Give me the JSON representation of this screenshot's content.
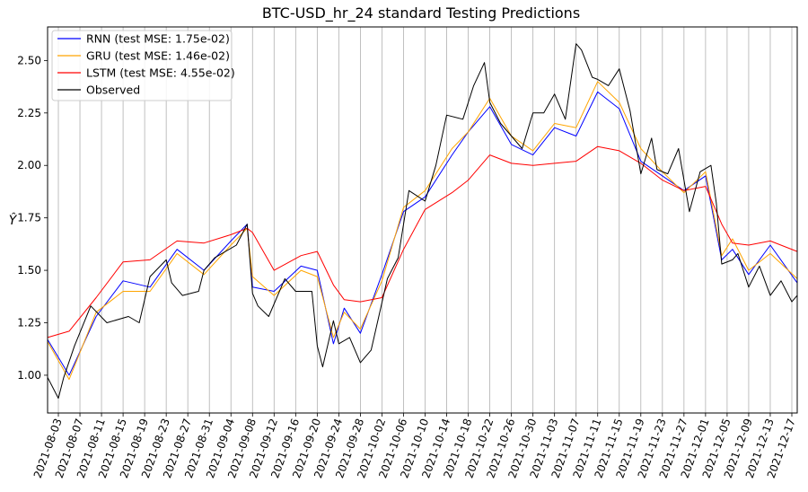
{
  "chart_data": {
    "type": "line",
    "title": "BTC-USD_hr_24 standard Testing Predictions",
    "xlabel": "",
    "ylabel": "Ŷ",
    "x_start": "2021-08-01",
    "x_end": "2021-12-18",
    "ylim": [
      0.82,
      2.66
    ],
    "y_ticks": [
      1.0,
      1.25,
      1.5,
      1.75,
      2.0,
      2.25,
      2.5
    ],
    "y_tick_labels": [
      "1.00",
      "1.25",
      "1.50",
      "1.75",
      "2.00",
      "2.25",
      "2.50"
    ],
    "x_ticks": [
      "2021-08-03",
      "2021-08-07",
      "2021-08-11",
      "2021-08-15",
      "2021-08-19",
      "2021-08-23",
      "2021-08-27",
      "2021-08-31",
      "2021-09-04",
      "2021-09-08",
      "2021-09-12",
      "2021-09-16",
      "2021-09-20",
      "2021-09-24",
      "2021-09-28",
      "2021-10-02",
      "2021-10-06",
      "2021-10-10",
      "2021-10-14",
      "2021-10-18",
      "2021-10-22",
      "2021-10-26",
      "2021-10-30",
      "2021-11-03",
      "2021-11-07",
      "2021-11-11",
      "2021-11-15",
      "2021-11-19",
      "2021-11-23",
      "2021-11-27",
      "2021-12-01",
      "2021-12-05",
      "2021-12-09",
      "2021-12-13",
      "2021-12-17"
    ],
    "grid": "vertical",
    "legend_position": "top-left",
    "series": [
      {
        "name": "RNN (test MSE: 1.75e-02)",
        "color": "#0000ff",
        "x": [
          "2021-08-01",
          "2021-08-05",
          "2021-08-10",
          "2021-08-15",
          "2021-08-20",
          "2021-08-25",
          "2021-08-30",
          "2021-09-04",
          "2021-09-07",
          "2021-09-08",
          "2021-09-12",
          "2021-09-17",
          "2021-09-20",
          "2021-09-23",
          "2021-09-25",
          "2021-09-28",
          "2021-10-02",
          "2021-10-06",
          "2021-10-10",
          "2021-10-15",
          "2021-10-18",
          "2021-10-22",
          "2021-10-26",
          "2021-10-30",
          "2021-11-03",
          "2021-11-07",
          "2021-11-11",
          "2021-11-15",
          "2021-11-19",
          "2021-11-23",
          "2021-11-27",
          "2021-12-01",
          "2021-12-04",
          "2021-12-06",
          "2021-12-09",
          "2021-12-13",
          "2021-12-18"
        ],
        "y": [
          1.17,
          1.0,
          1.28,
          1.45,
          1.42,
          1.6,
          1.5,
          1.64,
          1.72,
          1.42,
          1.4,
          1.52,
          1.5,
          1.15,
          1.32,
          1.2,
          1.48,
          1.78,
          1.85,
          2.05,
          2.16,
          2.28,
          2.1,
          2.05,
          2.18,
          2.14,
          2.35,
          2.27,
          2.02,
          1.95,
          1.88,
          1.95,
          1.55,
          1.6,
          1.48,
          1.62,
          1.44
        ]
      },
      {
        "name": "GRU (test MSE: 1.46e-02)",
        "color": "#ffa500",
        "x": [
          "2021-08-01",
          "2021-08-05",
          "2021-08-10",
          "2021-08-15",
          "2021-08-20",
          "2021-08-25",
          "2021-08-30",
          "2021-09-04",
          "2021-09-07",
          "2021-09-08",
          "2021-09-12",
          "2021-09-17",
          "2021-09-20",
          "2021-09-23",
          "2021-09-25",
          "2021-09-28",
          "2021-10-02",
          "2021-10-06",
          "2021-10-10",
          "2021-10-15",
          "2021-10-18",
          "2021-10-22",
          "2021-10-26",
          "2021-10-30",
          "2021-11-03",
          "2021-11-07",
          "2021-11-11",
          "2021-11-15",
          "2021-11-19",
          "2021-11-23",
          "2021-11-27",
          "2021-12-01",
          "2021-12-04",
          "2021-12-06",
          "2021-12-09",
          "2021-12-13",
          "2021-12-18"
        ],
        "y": [
          1.16,
          0.98,
          1.3,
          1.4,
          1.4,
          1.58,
          1.48,
          1.62,
          1.7,
          1.47,
          1.38,
          1.5,
          1.47,
          1.18,
          1.3,
          1.22,
          1.45,
          1.8,
          1.88,
          2.08,
          2.16,
          2.32,
          2.14,
          2.07,
          2.2,
          2.18,
          2.4,
          2.3,
          2.08,
          1.97,
          1.87,
          1.97,
          1.57,
          1.65,
          1.5,
          1.58,
          1.46
        ]
      },
      {
        "name": "LSTM (test MSE: 4.55e-02)",
        "color": "#ff0000",
        "x": [
          "2021-08-01",
          "2021-08-05",
          "2021-08-10",
          "2021-08-15",
          "2021-08-20",
          "2021-08-25",
          "2021-08-30",
          "2021-09-04",
          "2021-09-07",
          "2021-09-08",
          "2021-09-12",
          "2021-09-17",
          "2021-09-20",
          "2021-09-23",
          "2021-09-25",
          "2021-09-28",
          "2021-10-02",
          "2021-10-06",
          "2021-10-10",
          "2021-10-15",
          "2021-10-18",
          "2021-10-22",
          "2021-10-26",
          "2021-10-30",
          "2021-11-03",
          "2021-11-07",
          "2021-11-11",
          "2021-11-15",
          "2021-11-19",
          "2021-11-23",
          "2021-11-27",
          "2021-12-01",
          "2021-12-04",
          "2021-12-06",
          "2021-12-09",
          "2021-12-13",
          "2021-12-18"
        ],
        "y": [
          1.18,
          1.21,
          1.37,
          1.54,
          1.55,
          1.64,
          1.63,
          1.67,
          1.7,
          1.68,
          1.5,
          1.57,
          1.59,
          1.43,
          1.36,
          1.35,
          1.37,
          1.6,
          1.79,
          1.87,
          1.93,
          2.05,
          2.01,
          2.0,
          2.01,
          2.02,
          2.09,
          2.07,
          2.01,
          1.93,
          1.88,
          1.9,
          1.72,
          1.63,
          1.62,
          1.64,
          1.59
        ]
      },
      {
        "name": "Observed",
        "color": "#000000",
        "x": [
          "2021-08-01",
          "2021-08-03",
          "2021-08-04",
          "2021-08-06",
          "2021-08-09",
          "2021-08-12",
          "2021-08-16",
          "2021-08-18",
          "2021-08-20",
          "2021-08-23",
          "2021-08-24",
          "2021-08-26",
          "2021-08-29",
          "2021-08-30",
          "2021-09-01",
          "2021-09-05",
          "2021-09-07",
          "2021-09-08",
          "2021-09-09",
          "2021-09-11",
          "2021-09-14",
          "2021-09-16",
          "2021-09-19",
          "2021-09-20",
          "2021-09-21",
          "2021-09-23",
          "2021-09-24",
          "2021-09-26",
          "2021-09-27",
          "2021-09-28",
          "2021-09-30",
          "2021-10-03",
          "2021-10-05",
          "2021-10-07",
          "2021-10-10",
          "2021-10-12",
          "2021-10-14",
          "2021-10-17",
          "2021-10-19",
          "2021-10-21",
          "2021-10-22",
          "2021-10-24",
          "2021-10-26",
          "2021-10-28",
          "2021-10-30",
          "2021-11-01",
          "2021-11-03",
          "2021-11-05",
          "2021-11-07",
          "2021-11-08",
          "2021-11-10",
          "2021-11-11",
          "2021-11-13",
          "2021-11-15",
          "2021-11-17",
          "2021-11-19",
          "2021-11-21",
          "2021-11-22",
          "2021-11-24",
          "2021-11-26",
          "2021-11-28",
          "2021-11-30",
          "2021-12-02",
          "2021-12-03",
          "2021-12-04",
          "2021-12-06",
          "2021-12-07",
          "2021-12-09",
          "2021-12-11",
          "2021-12-13",
          "2021-12-15",
          "2021-12-17",
          "2021-12-18"
        ],
        "y": [
          0.99,
          0.89,
          0.99,
          1.14,
          1.33,
          1.25,
          1.28,
          1.25,
          1.47,
          1.55,
          1.44,
          1.38,
          1.4,
          1.5,
          1.56,
          1.62,
          1.72,
          1.39,
          1.33,
          1.28,
          1.46,
          1.4,
          1.4,
          1.14,
          1.04,
          1.26,
          1.15,
          1.18,
          1.12,
          1.06,
          1.12,
          1.46,
          1.56,
          1.88,
          1.83,
          2.0,
          2.24,
          2.22,
          2.38,
          2.49,
          2.3,
          2.2,
          2.14,
          2.08,
          2.25,
          2.25,
          2.34,
          2.22,
          2.58,
          2.55,
          2.42,
          2.41,
          2.38,
          2.46,
          2.26,
          1.96,
          2.13,
          1.98,
          1.96,
          2.08,
          1.78,
          1.97,
          2.0,
          1.82,
          1.53,
          1.55,
          1.58,
          1.42,
          1.52,
          1.38,
          1.45,
          1.35,
          1.38
        ]
      }
    ]
  }
}
